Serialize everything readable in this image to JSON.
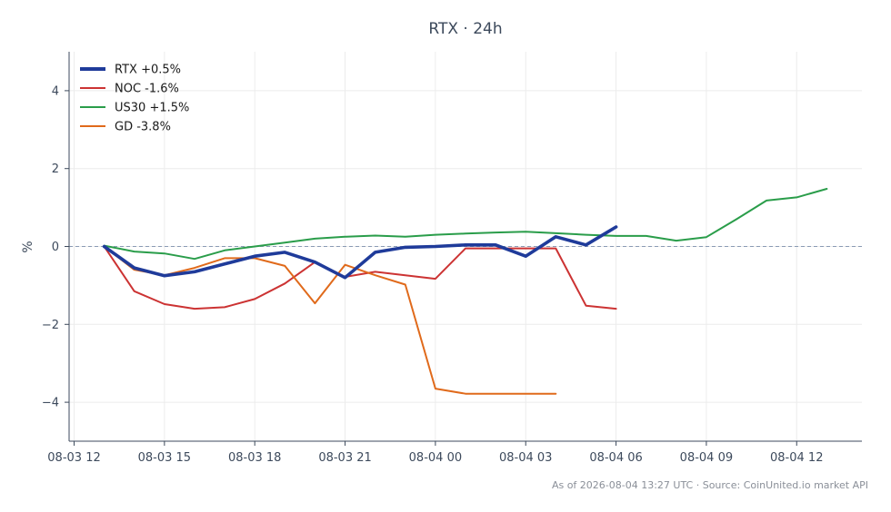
{
  "chart_data": {
    "type": "line",
    "title": "RTX · 24h",
    "xlabel": "",
    "ylabel": "%",
    "ylim": [
      -5,
      5
    ],
    "xlim": [
      "2026-08-03 11:50",
      "2026-08-04 14:10"
    ],
    "x_ticks": [
      "08-03 12",
      "08-03 15",
      "08-03 18",
      "08-03 21",
      "08-04 00",
      "08-04 03",
      "08-04 06",
      "08-04 09",
      "08-04 12"
    ],
    "y_ticks": [
      -4,
      -2,
      0,
      2,
      4
    ],
    "y_tick_labels": [
      "−4",
      "−2",
      "0",
      "2",
      "4"
    ],
    "grid": true,
    "reference_line": 0,
    "legend_position": "top-left",
    "series": [
      {
        "name": "RTX +0.5%",
        "color": "#1f3b9a",
        "emphasis": true,
        "x": [
          "2026-08-03 13:00",
          "2026-08-03 14:00",
          "2026-08-03 15:00",
          "2026-08-03 16:00",
          "2026-08-03 17:00",
          "2026-08-03 18:00",
          "2026-08-03 19:00",
          "2026-08-03 20:00",
          "2026-08-03 21:00",
          "2026-08-03 22:00",
          "2026-08-03 23:00",
          "2026-08-04 00:00",
          "2026-08-04 01:00",
          "2026-08-04 02:00",
          "2026-08-04 03:00",
          "2026-08-04 04:00",
          "2026-08-04 05:00",
          "2026-08-04 06:00"
        ],
        "y": [
          0.0,
          -0.55,
          -0.75,
          -0.65,
          -0.45,
          -0.25,
          -0.15,
          -0.4,
          -0.8,
          -0.15,
          -0.02,
          0.0,
          0.04,
          0.04,
          -0.25,
          0.25,
          0.04,
          0.5
        ]
      },
      {
        "name": "NOC -1.6%",
        "color": "#cc3333",
        "emphasis": false,
        "x": [
          "2026-08-03 13:00",
          "2026-08-03 14:00",
          "2026-08-03 15:00",
          "2026-08-03 16:00",
          "2026-08-03 17:00",
          "2026-08-03 18:00",
          "2026-08-03 19:00",
          "2026-08-03 20:00",
          "2026-08-03 21:00",
          "2026-08-03 22:00",
          "2026-08-03 23:00",
          "2026-08-04 00:00",
          "2026-08-04 01:00",
          "2026-08-04 02:00",
          "2026-08-04 03:00",
          "2026-08-04 04:00",
          "2026-08-04 05:00",
          "2026-08-04 06:00"
        ],
        "y": [
          0.0,
          -1.15,
          -1.48,
          -1.6,
          -1.56,
          -1.35,
          -0.95,
          -0.4,
          -0.78,
          -0.65,
          -0.74,
          -0.83,
          -0.05,
          -0.05,
          -0.05,
          -0.05,
          -1.52,
          -1.6
        ]
      },
      {
        "name": "US30 +1.5%",
        "color": "#2a9d4a",
        "emphasis": false,
        "x": [
          "2026-08-03 13:00",
          "2026-08-03 14:00",
          "2026-08-03 15:00",
          "2026-08-03 16:00",
          "2026-08-03 17:00",
          "2026-08-03 18:00",
          "2026-08-03 19:00",
          "2026-08-03 20:00",
          "2026-08-03 21:00",
          "2026-08-03 22:00",
          "2026-08-03 23:00",
          "2026-08-04 00:00",
          "2026-08-04 01:00",
          "2026-08-04 02:00",
          "2026-08-04 03:00",
          "2026-08-04 04:00",
          "2026-08-04 05:00",
          "2026-08-04 06:00",
          "2026-08-04 07:00",
          "2026-08-04 08:00",
          "2026-08-04 09:00",
          "2026-08-04 10:00",
          "2026-08-04 11:00",
          "2026-08-04 12:00",
          "2026-08-04 13:00"
        ],
        "y": [
          0.02,
          -0.13,
          -0.18,
          -0.32,
          -0.1,
          0.0,
          0.1,
          0.2,
          0.25,
          0.28,
          0.25,
          0.3,
          0.33,
          0.36,
          0.38,
          0.34,
          0.3,
          0.27,
          0.27,
          0.15,
          0.24,
          0.7,
          1.18,
          1.26,
          1.48
        ]
      },
      {
        "name": "GD -3.8%",
        "color": "#e06a1b",
        "emphasis": false,
        "x": [
          "2026-08-03 13:00",
          "2026-08-03 14:00",
          "2026-08-03 15:00",
          "2026-08-03 16:00",
          "2026-08-03 17:00",
          "2026-08-03 18:00",
          "2026-08-03 19:00",
          "2026-08-03 20:00",
          "2026-08-03 21:00",
          "2026-08-03 22:00",
          "2026-08-03 23:00",
          "2026-08-04 00:00",
          "2026-08-04 01:00",
          "2026-08-04 02:00",
          "2026-08-04 03:00",
          "2026-08-04 04:00"
        ],
        "y": [
          0.0,
          -0.6,
          -0.74,
          -0.55,
          -0.3,
          -0.3,
          -0.5,
          -1.46,
          -0.47,
          -0.74,
          -0.98,
          -3.65,
          -3.78,
          -3.78,
          -3.78,
          -3.78
        ]
      }
    ]
  },
  "footer": {
    "text": "As of 2026-08-04 13:27 UTC · Source: CoinUnited.io market API"
  }
}
